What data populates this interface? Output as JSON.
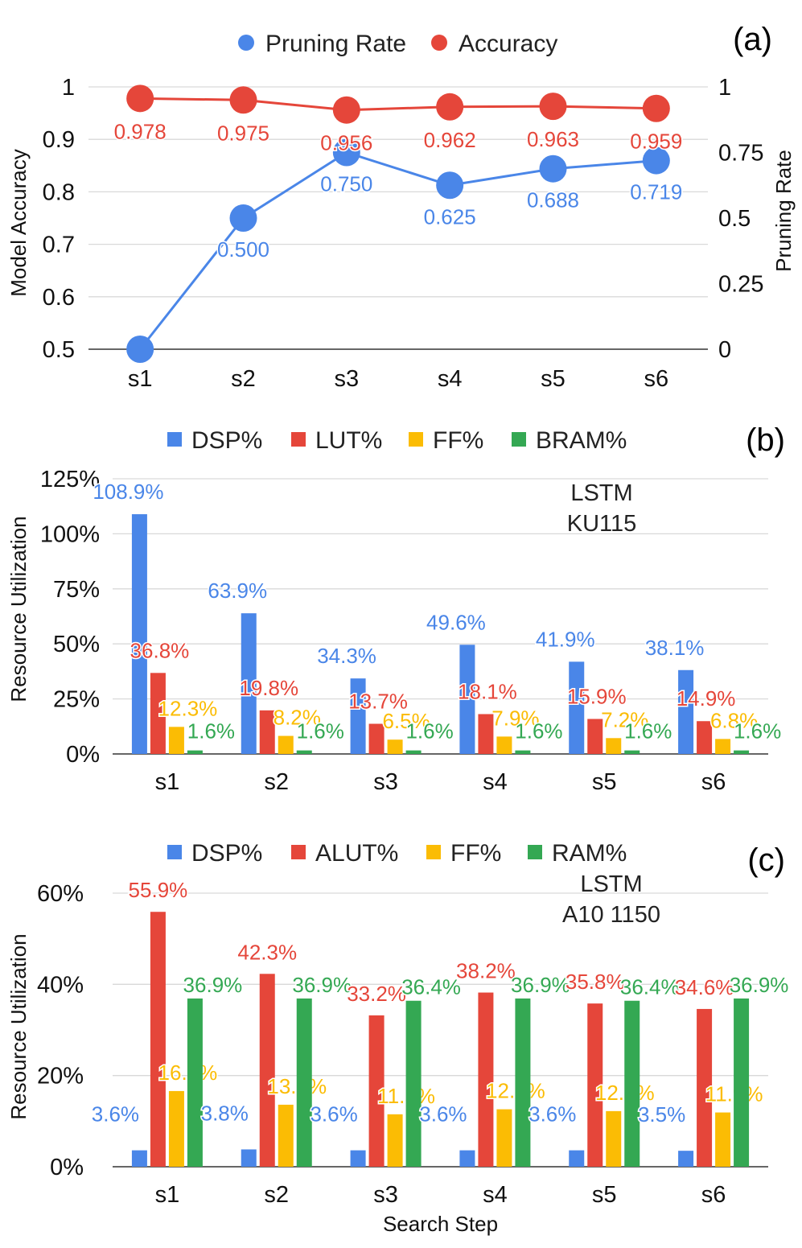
{
  "chart_data": [
    {
      "id": "a",
      "type": "line",
      "panel_label": "(a)",
      "categories": [
        "s1",
        "s2",
        "s3",
        "s4",
        "s5",
        "s6"
      ],
      "ylabel_left": "Model Accuracy",
      "ylabel_right": "Pruning Rate",
      "ylim_left": [
        0.5,
        1.0
      ],
      "ylim_right": [
        0,
        1
      ],
      "yticks_left": [
        "0.5",
        "0.6",
        "0.7",
        "0.8",
        "0.9",
        "1"
      ],
      "yticks_right": [
        "0",
        "0.25",
        "0.5",
        "0.75",
        "1"
      ],
      "legend_position": "top",
      "series": [
        {
          "name": "Pruning Rate",
          "axis": "right",
          "color": "#4a86e8",
          "values": [
            0.0,
            0.5,
            0.75,
            0.625,
            0.688,
            0.719
          ],
          "labels": [
            "",
            "0.500",
            "0.750",
            "0.625",
            "0.688",
            "0.719"
          ]
        },
        {
          "name": "Accuracy",
          "axis": "left",
          "color": "#e5463a",
          "values": [
            0.978,
            0.975,
            0.956,
            0.962,
            0.963,
            0.959
          ],
          "labels": [
            "0.978",
            "0.975",
            "0.956",
            "0.962",
            "0.963",
            "0.959"
          ]
        }
      ]
    },
    {
      "id": "b",
      "type": "bar",
      "panel_label": "(b)",
      "annotation": [
        "LSTM",
        "KU115"
      ],
      "categories": [
        "s1",
        "s2",
        "s3",
        "s4",
        "s5",
        "s6"
      ],
      "ylabel": "Resource Utilization",
      "ylim": [
        0,
        125
      ],
      "yticks": [
        "0%",
        "25%",
        "50%",
        "75%",
        "100%",
        "125%"
      ],
      "legend_position": "top",
      "series": [
        {
          "name": "DSP%",
          "color": "#4a86e8",
          "values": [
            108.9,
            63.9,
            34.3,
            49.6,
            41.9,
            38.1
          ],
          "labels": [
            "108.9%",
            "63.9%",
            "34.3%",
            "49.6%",
            "41.9%",
            "38.1%"
          ]
        },
        {
          "name": "LUT%",
          "color": "#e5463a",
          "values": [
            36.8,
            19.8,
            13.7,
            18.1,
            15.9,
            14.9
          ],
          "labels": [
            "36.8%",
            "19.8%",
            "13.7%",
            "18.1%",
            "15.9%",
            "14.9%"
          ]
        },
        {
          "name": "FF%",
          "color": "#fbbc04",
          "values": [
            12.3,
            8.2,
            6.5,
            7.9,
            7.2,
            6.8
          ],
          "labels": [
            "12.3%",
            "8.2%",
            "6.5%",
            "7.9%",
            "7.2%",
            "6.8%"
          ]
        },
        {
          "name": "BRAM%",
          "color": "#34a853",
          "values": [
            1.6,
            1.6,
            1.6,
            1.6,
            1.6,
            1.6
          ],
          "labels": [
            "1.6%",
            "1.6%",
            "1.6%",
            "1.6%",
            "1.6%",
            "1.6%"
          ]
        }
      ]
    },
    {
      "id": "c",
      "type": "bar",
      "panel_label": "(c)",
      "annotation": [
        "LSTM",
        "A10 1150"
      ],
      "categories": [
        "s1",
        "s2",
        "s3",
        "s4",
        "s5",
        "s6"
      ],
      "xlabel": "Search Step",
      "ylabel": "Resource Utilization",
      "ylim": [
        0,
        60
      ],
      "yticks": [
        "0%",
        "20%",
        "40%",
        "60%"
      ],
      "legend_position": "top",
      "series": [
        {
          "name": "DSP%",
          "color": "#4a86e8",
          "values": [
            3.6,
            3.8,
            3.6,
            3.6,
            3.6,
            3.5
          ],
          "labels": [
            "3.6%",
            "3.8%",
            "3.6%",
            "3.6%",
            "3.6%",
            "3.5%"
          ]
        },
        {
          "name": "ALUT%",
          "color": "#e5463a",
          "values": [
            55.9,
            42.3,
            33.2,
            38.2,
            35.8,
            34.6
          ],
          "labels": [
            "55.9%",
            "42.3%",
            "33.2%",
            "38.2%",
            "35.8%",
            "34.6%"
          ]
        },
        {
          "name": "FF%",
          "color": "#fbbc04",
          "values": [
            16.6,
            13.6,
            11.5,
            12.6,
            12.2,
            11.9
          ],
          "labels": [
            "16.6%",
            "13.6%",
            "11.5%",
            "12.6%",
            "12.2%",
            "11.9%"
          ]
        },
        {
          "name": "RAM%",
          "color": "#34a853",
          "values": [
            36.9,
            36.9,
            36.4,
            36.9,
            36.4,
            36.9
          ],
          "labels": [
            "36.9%",
            "36.9%",
            "36.4%",
            "36.9%",
            "36.4%",
            "36.9%"
          ]
        }
      ]
    }
  ]
}
